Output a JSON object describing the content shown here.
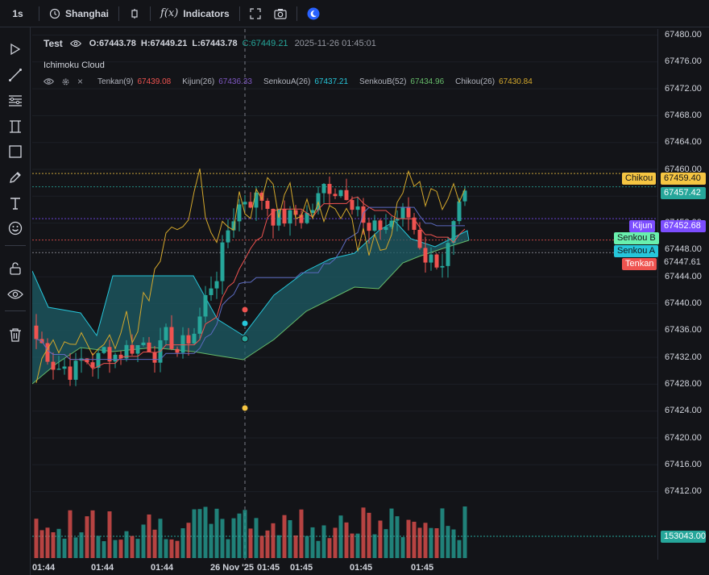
{
  "toolbar": {
    "interval": "1s",
    "timezone": "Shanghai",
    "indicators_label": "Indicators",
    "fx_label": "f(x)"
  },
  "legend": {
    "symbol": "Test",
    "open": "O:67443.78",
    "high": "H:67449.21",
    "low": "L:67443.78",
    "close": "C:67449.21",
    "datetime": "2025-11-26 01:45:01"
  },
  "indicator": {
    "name": "Ichimoku Cloud",
    "close_x": "×",
    "values": [
      {
        "label": "Tenkan(9)",
        "value": "67439.08",
        "color": "#ef5350"
      },
      {
        "label": "Kijun(26)",
        "value": "67436.33",
        "color": "#7e57c2"
      },
      {
        "label": "SenkouA(26)",
        "value": "67437.21",
        "color": "#26c6da"
      },
      {
        "label": "SenkouB(52)",
        "value": "67434.96",
        "color": "#66bb6a"
      },
      {
        "label": "Chikou(26)",
        "value": "67430.84",
        "color": "#d4a82c"
      }
    ]
  },
  "price_axis": {
    "labels": [
      "67480.00",
      "67476.00",
      "67472.00",
      "67468.00",
      "67464.00",
      "67460.00",
      "67456.00",
      "67452.00",
      "67448.00",
      "67444.00",
      "67440.00",
      "67436.00",
      "67432.00",
      "67428.00",
      "67424.00",
      "67420.00",
      "67416.00",
      "67412.00"
    ]
  },
  "price_tags": {
    "chikou": {
      "label": "Chikou",
      "value": "67459.40",
      "color": "#f5c542"
    },
    "last": {
      "value": "67457.42",
      "color": "#26a69a"
    },
    "kijun": {
      "label": "Kijun",
      "value": "67452.68",
      "color": "#7c4dff"
    },
    "senkou_b": {
      "label": "Senkou B",
      "color": "#69f0ae"
    },
    "senkou_a": {
      "label": "Senkou A",
      "color": "#26c6da"
    },
    "tenkan": {
      "label": "Tenkan",
      "value": "67447.61",
      "color": "#ef5350"
    },
    "volume": {
      "value": "153043.00",
      "color": "#26a69a"
    }
  },
  "time_axis": {
    "labels": [
      "01:44",
      "01:44",
      "01:44",
      "26 Nov '25",
      "01:45",
      "01:45",
      "01:45",
      "01:45"
    ]
  },
  "colors": {
    "up": "#26a69a",
    "down": "#ef5350",
    "cloud": "#1e5c66",
    "background": "#131418"
  }
}
